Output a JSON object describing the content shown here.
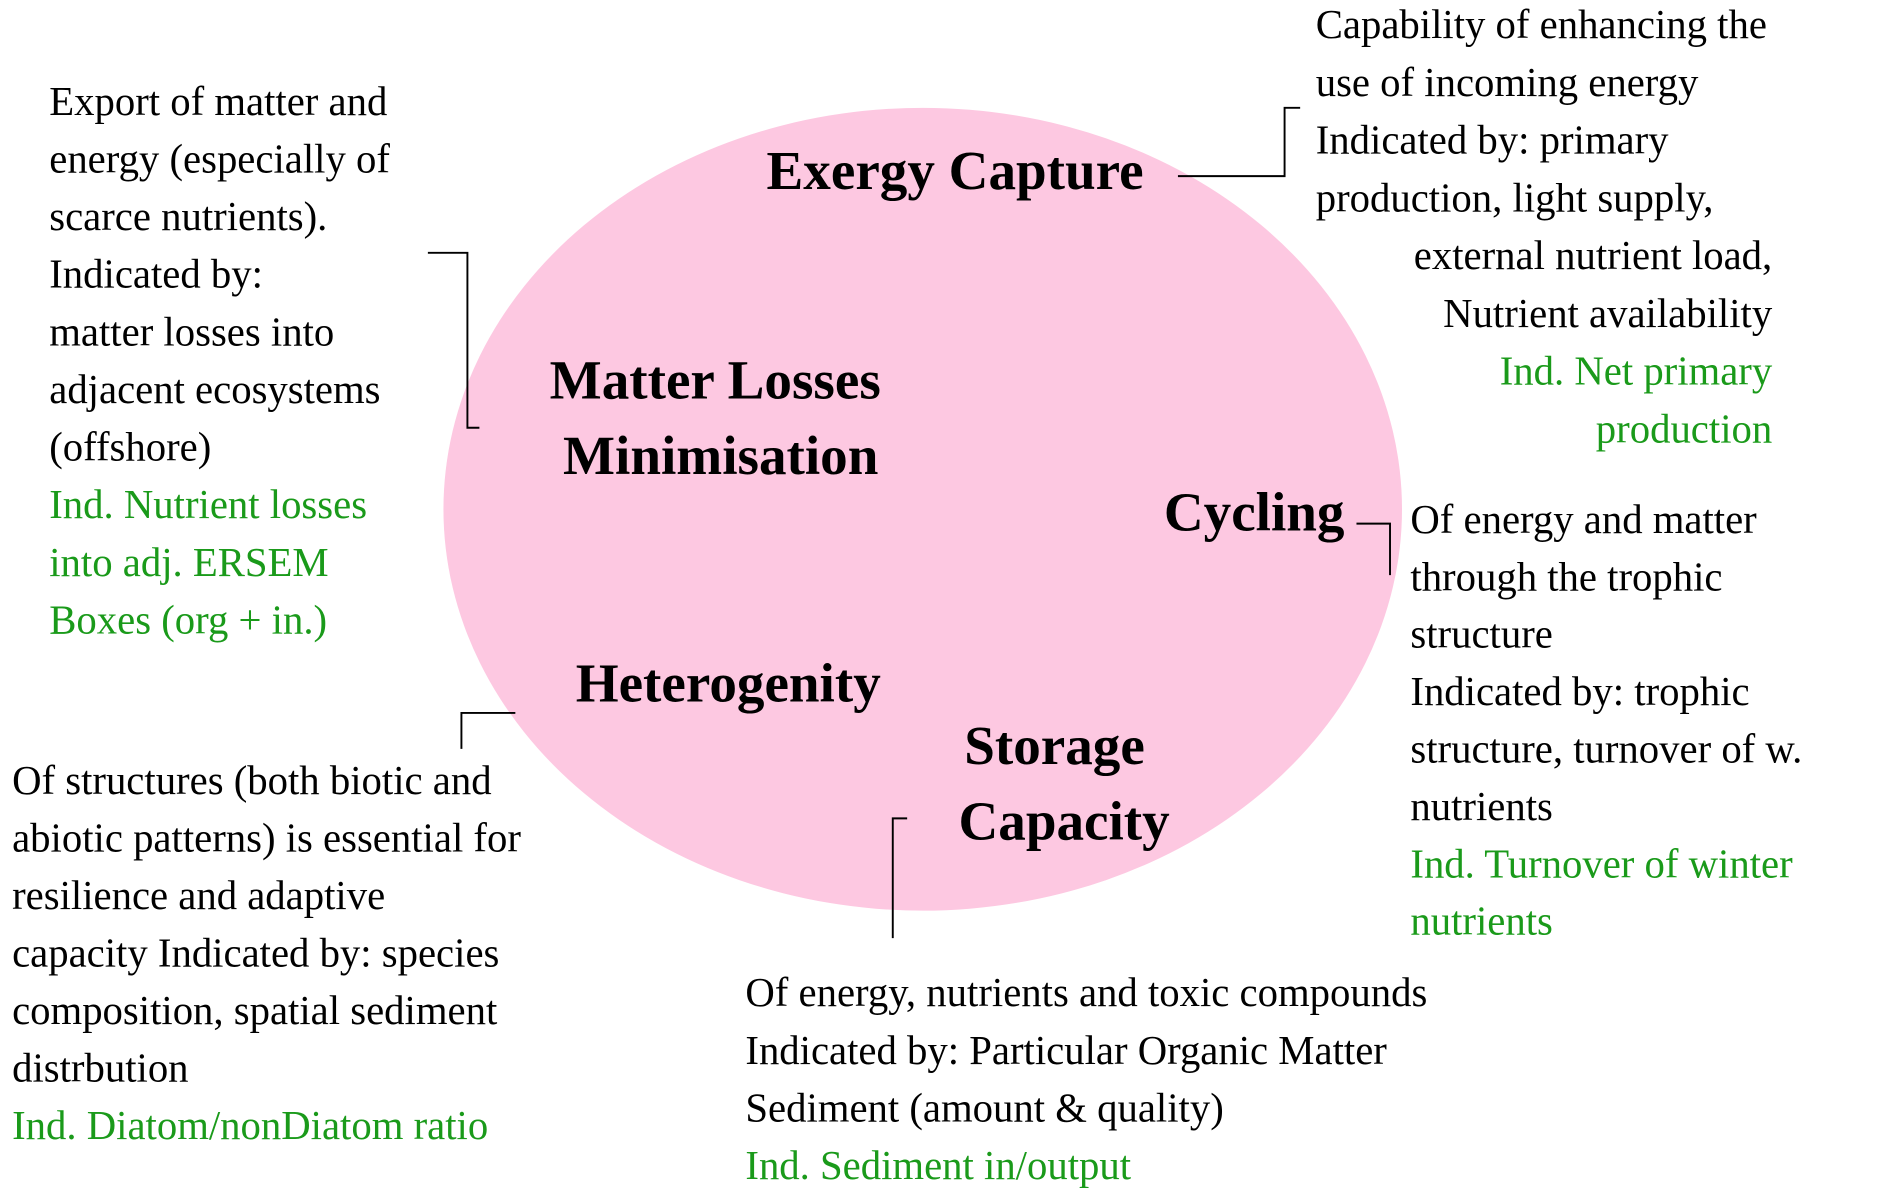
{
  "nodes": [
    {
      "label": [
        "Exergy Capture"
      ],
      "lines": [
        "Capability of enhancing the",
        "use of incoming energy",
        "Indicated by: primary",
        "production, light supply,",
        "external nutrient load,",
        "Nutrient availability"
      ],
      "indicator": [
        "Ind. Net primary",
        "production"
      ]
    },
    {
      "label": [
        "Matter Losses",
        "Minimisation"
      ],
      "lines": [
        "Export of matter and",
        "energy (especially of",
        "scarce nutrients).",
        "Indicated by:",
        "matter losses into",
        "adjacent ecosystems",
        "(offshore)"
      ],
      "indicator": [
        "Ind. Nutrient losses",
        "into adj. ERSEM",
        "Boxes (org + in.)"
      ]
    },
    {
      "label": [
        "Cycling"
      ],
      "lines": [
        "Of energy and matter",
        "through the trophic",
        "structure",
        "Indicated by: trophic",
        "structure, turnover of w.",
        "nutrients"
      ],
      "indicator": [
        "Ind. Turnover of winter",
        "nutrients"
      ]
    },
    {
      "label": [
        "Heterogenity"
      ],
      "lines": [
        "Of structures (both biotic and",
        "abiotic patterns) is essential for",
        "resilience and adaptive",
        "capacity Indicated by: species",
        "composition, spatial sediment",
        "distrbution"
      ],
      "indicator": [
        "Ind. Diatom/nonDiatom ratio"
      ]
    },
    {
      "label": [
        "Storage",
        "Capacity"
      ],
      "lines": [
        "Of energy,  nutrients and toxic compounds",
        "Indicated by: Particular Organic Matter",
        "Sediment (amount & quality)"
      ],
      "indicator": [
        "Ind. Sediment in/output"
      ]
    }
  ]
}
